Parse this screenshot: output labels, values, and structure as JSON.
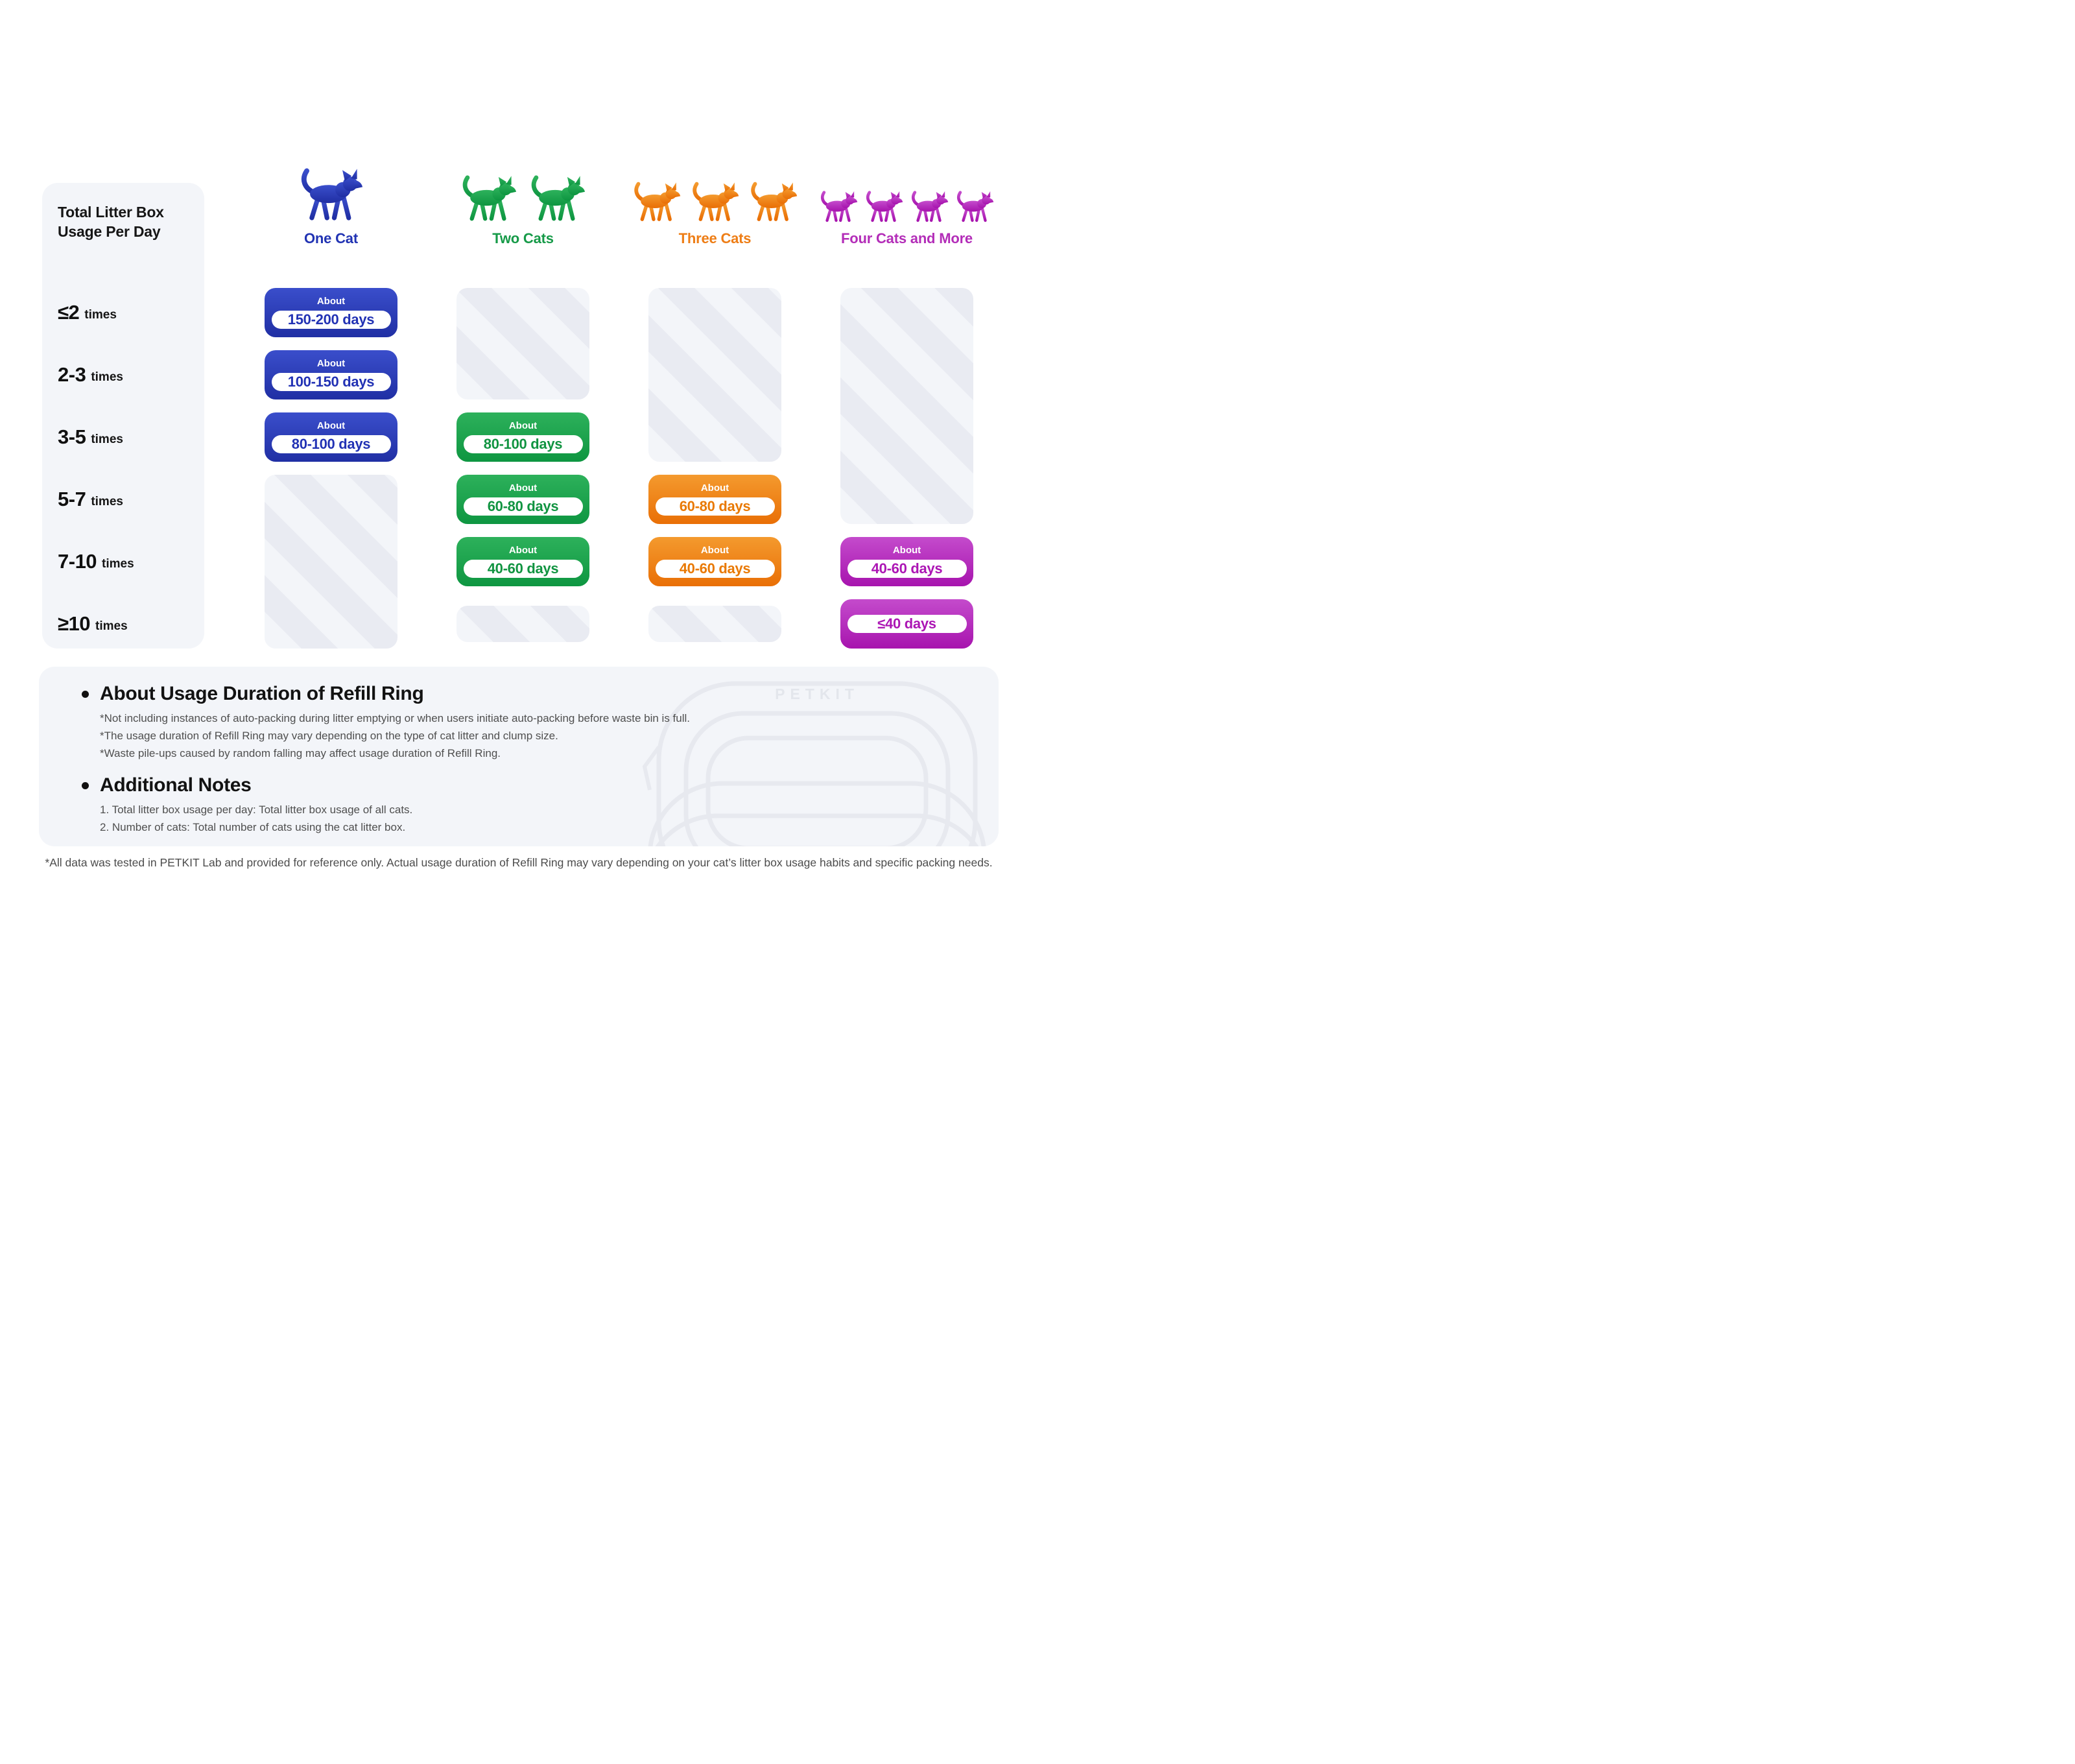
{
  "header": {
    "row_axis_title": "Total Litter Box Usage Per Day",
    "columns": [
      {
        "label": "One Cat",
        "count": 1,
        "label_color": "#2133b3",
        "grad_top": "#3a4ecb",
        "grad_bottom": "#202fa4",
        "text_color": "#2232b4"
      },
      {
        "label": "Two Cats",
        "count": 2,
        "label_color": "#169a48",
        "grad_top": "#2db15b",
        "grad_bottom": "#0e9641",
        "text_color": "#119441"
      },
      {
        "label": "Three Cats",
        "count": 3,
        "label_color": "#ee7d15",
        "grad_top": "#f49a2e",
        "grad_bottom": "#e96f06",
        "text_color": "#e97903"
      },
      {
        "label": "Four Cats and More",
        "count": 4,
        "label_color": "#b32db8",
        "grad_top": "#c44bcc",
        "grad_bottom": "#a714ae",
        "text_color": "#ac16b4"
      }
    ]
  },
  "table": {
    "rows": [
      {
        "value": "≤2",
        "unit": "times"
      },
      {
        "value": "2-3",
        "unit": "times"
      },
      {
        "value": "3-5",
        "unit": "times"
      },
      {
        "value": "5-7",
        "unit": "times"
      },
      {
        "value": "7-10",
        "unit": "times"
      },
      {
        "value": "≥10",
        "unit": "times"
      }
    ],
    "cells": [
      {
        "col": 0,
        "row": 0,
        "span": 1,
        "kind": "pill",
        "prefix": "About",
        "value": "150-200 days"
      },
      {
        "col": 0,
        "row": 1,
        "span": 1,
        "kind": "pill",
        "prefix": "About",
        "value": "100-150 days"
      },
      {
        "col": 0,
        "row": 2,
        "span": 1,
        "kind": "pill",
        "prefix": "About",
        "value": "80-100 days"
      },
      {
        "col": 0,
        "row": 3,
        "span": 3,
        "kind": "blank"
      },
      {
        "col": 1,
        "row": 0,
        "span": 2,
        "kind": "blank"
      },
      {
        "col": 1,
        "row": 2,
        "span": 1,
        "kind": "pill",
        "prefix": "About",
        "value": "80-100 days"
      },
      {
        "col": 1,
        "row": 3,
        "span": 1,
        "kind": "pill",
        "prefix": "About",
        "value": "60-80 days"
      },
      {
        "col": 1,
        "row": 4,
        "span": 1,
        "kind": "pill",
        "prefix": "About",
        "value": "40-60 days"
      },
      {
        "col": 1,
        "row": 5,
        "span": 1,
        "kind": "blank",
        "small": true
      },
      {
        "col": 2,
        "row": 0,
        "span": 3,
        "kind": "blank"
      },
      {
        "col": 2,
        "row": 3,
        "span": 1,
        "kind": "pill",
        "prefix": "About",
        "value": "60-80 days"
      },
      {
        "col": 2,
        "row": 4,
        "span": 1,
        "kind": "pill",
        "prefix": "About",
        "value": "40-60 days"
      },
      {
        "col": 2,
        "row": 5,
        "span": 1,
        "kind": "blank",
        "small": true
      },
      {
        "col": 3,
        "row": 0,
        "span": 4,
        "kind": "blank"
      },
      {
        "col": 3,
        "row": 4,
        "span": 1,
        "kind": "pill",
        "prefix": "About",
        "value": "40-60 days"
      },
      {
        "col": 3,
        "row": 5,
        "span": 1,
        "kind": "pill",
        "prefix": "",
        "value": "≤40 days"
      }
    ]
  },
  "notes": {
    "about_heading": "About Usage Duration of Refill Ring",
    "about_items": [
      "*Not including instances of auto-packing during litter emptying or when users initiate auto-packing before waste bin is full.",
      "*The usage duration of Refill Ring may vary depending on the type of cat litter and clump size.",
      "*Waste pile-ups caused by random falling may affect usage duration of Refill Ring."
    ],
    "additional_heading": "Additional Notes",
    "additional_items": [
      "1. Total litter box usage per day: Total litter box usage of all cats.",
      "2. Number of cats: Total number of cats using the cat litter box."
    ],
    "watermark": "PETKIT"
  },
  "footer": "*All data was tested in PETKIT Lab and provided for reference only. Actual usage duration of Refill Ring may vary depending on your cat’s litter box usage habits and specific packing needs.",
  "chart_data": {
    "type": "table",
    "title": "Refill Ring usage duration by total litter box usage per day and number of cats",
    "row_header": "Total Litter Box Usage Per Day",
    "rows": [
      "≤2 times",
      "2-3 times",
      "3-5 times",
      "5-7 times",
      "7-10 times",
      "≥10 times"
    ],
    "columns": [
      "One Cat",
      "Two Cats",
      "Three Cats",
      "Four Cats and More"
    ],
    "values": [
      [
        "About 150-200 days",
        null,
        null,
        null
      ],
      [
        "About 100-150 days",
        null,
        null,
        null
      ],
      [
        "About 80-100 days",
        "About 80-100 days",
        null,
        null
      ],
      [
        null,
        "About 60-80 days",
        "About 60-80 days",
        null
      ],
      [
        null,
        "About 40-60 days",
        "About 40-60 days",
        "About 40-60 days"
      ],
      [
        null,
        null,
        null,
        "≤40 days"
      ]
    ],
    "legend_position": "none",
    "grid": false,
    "colors": {
      "one_cat": "#2133b3",
      "two_cats": "#169a48",
      "three_cats": "#ee7d15",
      "four_cats_and_more": "#b32db8"
    }
  }
}
